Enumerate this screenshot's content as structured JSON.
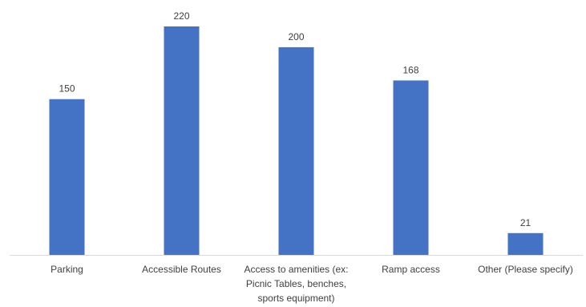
{
  "chart_data": {
    "type": "bar",
    "categories": [
      "Parking",
      "Accessible Routes",
      "Access to amenities (ex: Picnic Tables, benches, sports equipment)",
      "Ramp access",
      "Other (Please specify)"
    ],
    "category_label_lines": [
      [
        "Parking"
      ],
      [
        "Accessible Routes"
      ],
      [
        "Access to amenities (ex:",
        "Picnic Tables, benches,",
        "sports equipment)"
      ],
      [
        "Ramp access"
      ],
      [
        "Other (Please specify)"
      ]
    ],
    "values": [
      150,
      220,
      200,
      168,
      21
    ],
    "data_labels": [
      "150",
      "220",
      "200",
      "168",
      "21"
    ],
    "ylim": [
      0,
      240
    ],
    "grid": false,
    "legend": "none",
    "bar_color": "#4472C4",
    "axis_color": "#D9D9D9",
    "label_color": "#404040"
  }
}
